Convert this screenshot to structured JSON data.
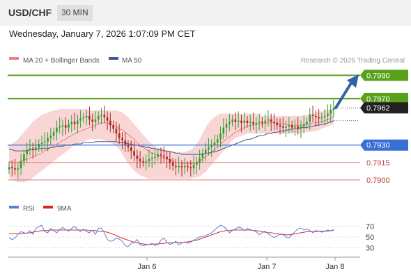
{
  "header": {
    "symbol": "USD/CHF",
    "timeframe": "30 MIN"
  },
  "timestamp": "Wednesday, January 7, 2026 1:07:09 PM CET",
  "legend": {
    "bb": "MA 20 + Bollinger Bands",
    "ma50": "MA 50",
    "credit": "Research © 2026 Trading Central"
  },
  "rsi_legend": {
    "rsi": "RSI",
    "ma": "9MA"
  },
  "colors": {
    "resistance": "#5aa11b",
    "support": "#e07a7a",
    "pivot": "#3a6fd8",
    "price_label": "#222222",
    "bullish": "#2e9e2e",
    "bearish": "#a8291c",
    "bands_fill": "#f9d6d6",
    "ma50": "#3c5a8f",
    "rsi": "#5b7fd6",
    "rsi_ma": "#d62828",
    "arrow": "#2f62a6"
  },
  "chart_data": {
    "type": "candlestick",
    "symbol": "USD/CHF",
    "timeframe": "30 MIN",
    "x_labels": [
      "Jan 6",
      "Jan 7",
      "Jan 8"
    ],
    "ylim": [
      0.7885,
      0.7995
    ],
    "levels": [
      {
        "value": 0.799,
        "label": "0.7990",
        "kind": "resistance"
      },
      {
        "value": 0.797,
        "label": "0.7970",
        "kind": "resistance"
      },
      {
        "value": 0.7962,
        "label": "0.7962",
        "kind": "last"
      },
      {
        "value": 0.793,
        "label": "0.7930",
        "kind": "pivot"
      },
      {
        "value": 0.7915,
        "label": "0.7915",
        "kind": "support"
      },
      {
        "value": 0.79,
        "label": "0.7900",
        "kind": "support"
      }
    ],
    "close": [
      0.7911,
      0.791,
      0.7909,
      0.791,
      0.7916,
      0.7922,
      0.7926,
      0.7927,
      0.7926,
      0.7928,
      0.7931,
      0.7932,
      0.7933,
      0.7936,
      0.7938,
      0.7941,
      0.7945,
      0.7946,
      0.7947,
      0.7945,
      0.7948,
      0.795,
      0.7948,
      0.7951,
      0.7953,
      0.7954,
      0.7955,
      0.7952,
      0.795,
      0.7952,
      0.7955,
      0.7956,
      0.7954,
      0.7951,
      0.7947,
      0.7944,
      0.794,
      0.7936,
      0.7934,
      0.793,
      0.7928,
      0.7925,
      0.7921,
      0.7918,
      0.7916,
      0.7915,
      0.7916,
      0.7918,
      0.7919,
      0.792,
      0.7922,
      0.7921,
      0.792,
      0.7918,
      0.7915,
      0.7912,
      0.7911,
      0.7912,
      0.7911,
      0.7912,
      0.7911,
      0.791,
      0.7913,
      0.7915,
      0.7919,
      0.7923,
      0.7926,
      0.7928,
      0.793,
      0.7932,
      0.7935,
      0.794,
      0.7945,
      0.7948,
      0.795,
      0.7952,
      0.795,
      0.7951,
      0.7949,
      0.7951,
      0.7949,
      0.795,
      0.7948,
      0.7949,
      0.795,
      0.7949,
      0.7951,
      0.7952,
      0.795,
      0.7949,
      0.7947,
      0.7946,
      0.7945,
      0.7946,
      0.7947,
      0.7945,
      0.7946,
      0.7944,
      0.7946,
      0.7948,
      0.795,
      0.7956,
      0.7955,
      0.7954,
      0.7953,
      0.7954,
      0.7955,
      0.7957,
      0.796,
      0.7962
    ],
    "ma20": [
      0.7916,
      0.7915,
      0.7915,
      0.7915,
      0.7916,
      0.7917,
      0.7918,
      0.7919,
      0.792,
      0.7921,
      0.7922,
      0.7923,
      0.7925,
      0.7926,
      0.7928,
      0.7929,
      0.7931,
      0.7932,
      0.7934,
      0.7935,
      0.7937,
      0.7938,
      0.794,
      0.7941,
      0.7942,
      0.7943,
      0.7944,
      0.7945,
      0.7946,
      0.7947,
      0.7948,
      0.7949,
      0.7949,
      0.7949,
      0.7948,
      0.7947,
      0.7946,
      0.7944,
      0.7943,
      0.7941,
      0.7939,
      0.7937,
      0.7935,
      0.7932,
      0.793,
      0.7928,
      0.7926,
      0.7925,
      0.7923,
      0.7922,
      0.7921,
      0.792,
      0.7919,
      0.7918,
      0.7917,
      0.7916,
      0.7915,
      0.7915,
      0.7914,
      0.7914,
      0.7914,
      0.7914,
      0.7914,
      0.7915,
      0.7916,
      0.7918,
      0.792,
      0.7922,
      0.7924,
      0.7926,
      0.7928,
      0.7931,
      0.7933,
      0.7935,
      0.7937,
      0.7939,
      0.7941,
      0.7942,
      0.7944,
      0.7945,
      0.7946,
      0.7947,
      0.7947,
      0.7948,
      0.7948,
      0.7948,
      0.7949,
      0.7949,
      0.7949,
      0.7949,
      0.7949,
      0.7948,
      0.7948,
      0.7948,
      0.7947,
      0.7947,
      0.7947,
      0.7947,
      0.7947,
      0.7947,
      0.7948,
      0.7948,
      0.7949,
      0.7949,
      0.795,
      0.795,
      0.7951,
      0.7952,
      0.7953,
      0.7954
    ],
    "ma50": [
      0.7926,
      0.7926,
      0.7925,
      0.7925,
      0.7925,
      0.7925,
      0.7925,
      0.7926,
      0.7926,
      0.7926,
      0.7927,
      0.7927,
      0.7927,
      0.7927,
      0.7928,
      0.7928,
      0.7929,
      0.7929,
      0.7929,
      0.793,
      0.793,
      0.793,
      0.7931,
      0.7931,
      0.7931,
      0.7932,
      0.7932,
      0.7932,
      0.7932,
      0.7933,
      0.7933,
      0.7933,
      0.7933,
      0.7933,
      0.7933,
      0.7933,
      0.7933,
      0.7932,
      0.7932,
      0.7932,
      0.7931,
      0.7931,
      0.793,
      0.793,
      0.7929,
      0.7929,
      0.7928,
      0.7928,
      0.7927,
      0.7927,
      0.7926,
      0.7926,
      0.7925,
      0.7925,
      0.7924,
      0.7924,
      0.7923,
      0.7923,
      0.7922,
      0.7922,
      0.7922,
      0.7922,
      0.7922,
      0.7922,
      0.7922,
      0.7922,
      0.7923,
      0.7923,
      0.7924,
      0.7924,
      0.7925,
      0.7926,
      0.7927,
      0.7928,
      0.7929,
      0.793,
      0.7931,
      0.7932,
      0.7933,
      0.7934,
      0.7935,
      0.7935,
      0.7936,
      0.7937,
      0.7938,
      0.7938,
      0.7939,
      0.794,
      0.794,
      0.7941,
      0.7941,
      0.7942,
      0.7942,
      0.7943,
      0.7943,
      0.7944,
      0.7944,
      0.7944,
      0.7945,
      0.7945,
      0.7945,
      0.7946,
      0.7946,
      0.7947,
      0.7947,
      0.7948,
      0.7948,
      0.7949,
      0.795,
      0.7951
    ],
    "bb_upper": [
      0.793,
      0.7931,
      0.7933,
      0.7935,
      0.7938,
      0.7941,
      0.7944,
      0.7947,
      0.795,
      0.7952,
      0.7954,
      0.7956,
      0.7957,
      0.7958,
      0.7959,
      0.796,
      0.796,
      0.7961,
      0.7961,
      0.7961,
      0.7961,
      0.7961,
      0.7961,
      0.7961,
      0.7961,
      0.7961,
      0.796,
      0.796,
      0.796,
      0.796,
      0.796,
      0.796,
      0.796,
      0.796,
      0.796,
      0.796,
      0.796,
      0.7959,
      0.7958,
      0.7956,
      0.7954,
      0.7951,
      0.7948,
      0.7945,
      0.7942,
      0.7939,
      0.7936,
      0.7933,
      0.7931,
      0.7929,
      0.7928,
      0.7927,
      0.7926,
      0.7925,
      0.7925,
      0.7924,
      0.7924,
      0.7924,
      0.7924,
      0.7924,
      0.7925,
      0.7926,
      0.7928,
      0.7931,
      0.7935,
      0.794,
      0.7945,
      0.7949,
      0.7952,
      0.7954,
      0.7956,
      0.7957,
      0.7957,
      0.7957,
      0.7957,
      0.7957,
      0.7957,
      0.7957,
      0.7957,
      0.7957,
      0.7957,
      0.7957,
      0.7957,
      0.7957,
      0.7956,
      0.7955,
      0.7955,
      0.7955,
      0.7955,
      0.7955,
      0.7955,
      0.7955,
      0.7955,
      0.7955,
      0.7955,
      0.7955,
      0.7955,
      0.7955,
      0.7955,
      0.7956,
      0.7956,
      0.7957,
      0.7957,
      0.7958,
      0.7959,
      0.7959,
      0.796,
      0.796,
      0.7961,
      0.7961
    ],
    "bb_lower": [
      0.7902,
      0.79,
      0.7899,
      0.7898,
      0.7898,
      0.7898,
      0.7899,
      0.79,
      0.7902,
      0.7904,
      0.7906,
      0.7908,
      0.791,
      0.7912,
      0.7914,
      0.7916,
      0.7918,
      0.792,
      0.7922,
      0.7924,
      0.7926,
      0.7928,
      0.793,
      0.7931,
      0.7932,
      0.7933,
      0.7934,
      0.7935,
      0.7935,
      0.7935,
      0.7935,
      0.7935,
      0.7934,
      0.7933,
      0.7932,
      0.7931,
      0.7929,
      0.7926,
      0.7922,
      0.7918,
      0.7914,
      0.7911,
      0.7908,
      0.7906,
      0.7904,
      0.7903,
      0.7902,
      0.7901,
      0.7901,
      0.7901,
      0.7901,
      0.7901,
      0.7901,
      0.7901,
      0.7901,
      0.7901,
      0.7901,
      0.7901,
      0.7901,
      0.7901,
      0.7901,
      0.7901,
      0.7902,
      0.7902,
      0.7903,
      0.7905,
      0.7907,
      0.791,
      0.7913,
      0.7916,
      0.7919,
      0.7922,
      0.7925,
      0.7928,
      0.7931,
      0.7934,
      0.7936,
      0.7937,
      0.7938,
      0.7939,
      0.794,
      0.794,
      0.794,
      0.794,
      0.794,
      0.794,
      0.794,
      0.794,
      0.794,
      0.794,
      0.794,
      0.794,
      0.794,
      0.794,
      0.794,
      0.794,
      0.794,
      0.794,
      0.794,
      0.7941,
      0.7941,
      0.7941,
      0.7942,
      0.7942,
      0.7943,
      0.7944,
      0.7945,
      0.7946,
      0.7947,
      0.7948
    ],
    "forecast": {
      "from": 0.7962,
      "to": 0.799
    },
    "rsi": {
      "ticks": [
        70,
        50,
        30
      ],
      "ylim": [
        20,
        80
      ],
      "rsi": [
        49,
        45,
        48,
        55,
        60,
        58,
        57,
        62,
        55,
        66,
        70,
        72,
        60,
        58,
        66,
        62,
        58,
        64,
        68,
        64,
        61,
        66,
        70,
        64,
        60,
        65,
        60,
        58,
        63,
        55,
        66,
        67,
        58,
        45,
        42,
        43,
        48,
        46,
        42,
        34,
        32,
        38,
        40,
        45,
        35,
        34,
        35,
        36,
        38,
        34,
        36,
        44,
        48,
        40,
        36,
        38,
        42,
        35,
        39,
        41,
        38,
        40,
        44,
        47,
        50,
        51,
        53,
        55,
        58,
        63,
        68,
        72,
        70,
        65,
        58,
        62,
        65,
        68,
        67,
        62,
        66,
        64,
        62,
        60,
        54,
        58,
        61,
        56,
        52,
        49,
        52,
        56,
        54,
        50,
        48,
        54,
        60,
        65,
        67,
        63,
        65,
        62,
        58,
        62,
        61,
        59,
        61,
        63,
        62,
        64
      ],
      "ma9": [
        56,
        56,
        56,
        56,
        56,
        57,
        57,
        58,
        59,
        60,
        61,
        62,
        62,
        62,
        63,
        63,
        63,
        63,
        63,
        63,
        63,
        63,
        63,
        63,
        63,
        63,
        63,
        62,
        62,
        62,
        61,
        61,
        60,
        59,
        57,
        55,
        53,
        50,
        48,
        46,
        44,
        42,
        40,
        39,
        38,
        37,
        36,
        36,
        36,
        37,
        37,
        38,
        38,
        39,
        39,
        39,
        40,
        40,
        40,
        40,
        41,
        42,
        43,
        44,
        46,
        48,
        50,
        52,
        54,
        56,
        58,
        60,
        61,
        62,
        62,
        63,
        63,
        63,
        63,
        63,
        63,
        63,
        62,
        62,
        61,
        60,
        59,
        58,
        58,
        57,
        56,
        55,
        55,
        54,
        54,
        55,
        56,
        57,
        58,
        59,
        60,
        60,
        60,
        60,
        61,
        61,
        61,
        61,
        62,
        62
      ]
    }
  }
}
